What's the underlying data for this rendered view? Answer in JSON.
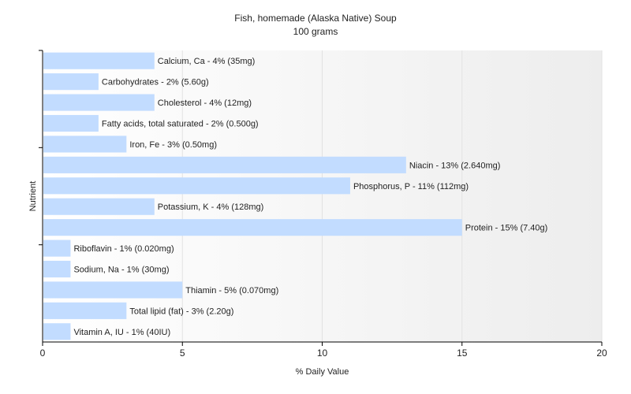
{
  "chart_data": {
    "type": "bar",
    "orientation": "horizontal",
    "title": "Fish, homemade (Alaska Native) Soup",
    "subtitle": "100 grams",
    "xlabel": "% Daily Value",
    "ylabel": "Nutrient",
    "xlim": [
      0,
      20
    ],
    "xticks": [
      0,
      5,
      10,
      15,
      20
    ],
    "grid": true,
    "bar_color": "#c2dcff",
    "categories": [
      "Calcium, Ca",
      "Carbohydrates",
      "Cholesterol",
      "Fatty acids, total saturated",
      "Iron, Fe",
      "Niacin",
      "Phosphorus, P",
      "Potassium, K",
      "Protein",
      "Riboflavin",
      "Sodium, Na",
      "Thiamin",
      "Total lipid (fat)",
      "Vitamin A, IU"
    ],
    "values": [
      4,
      2,
      4,
      2,
      3,
      13,
      11,
      4,
      15,
      1,
      1,
      5,
      3,
      1
    ],
    "labels": [
      "Calcium, Ca - 4% (35mg)",
      "Carbohydrates - 2% (5.60g)",
      "Cholesterol - 4% (12mg)",
      "Fatty acids, total saturated - 2% (0.500g)",
      "Iron, Fe - 3% (0.50mg)",
      "Niacin - 13% (2.640mg)",
      "Phosphorus, P - 11% (112mg)",
      "Potassium, K - 4% (128mg)",
      "Protein - 15% (7.40g)",
      "Riboflavin - 1% (0.020mg)",
      "Sodium, Na - 1% (30mg)",
      "Thiamin - 5% (0.070mg)",
      "Total lipid (fat) - 3% (2.20g)",
      "Vitamin A, IU - 1% (40IU)"
    ]
  }
}
